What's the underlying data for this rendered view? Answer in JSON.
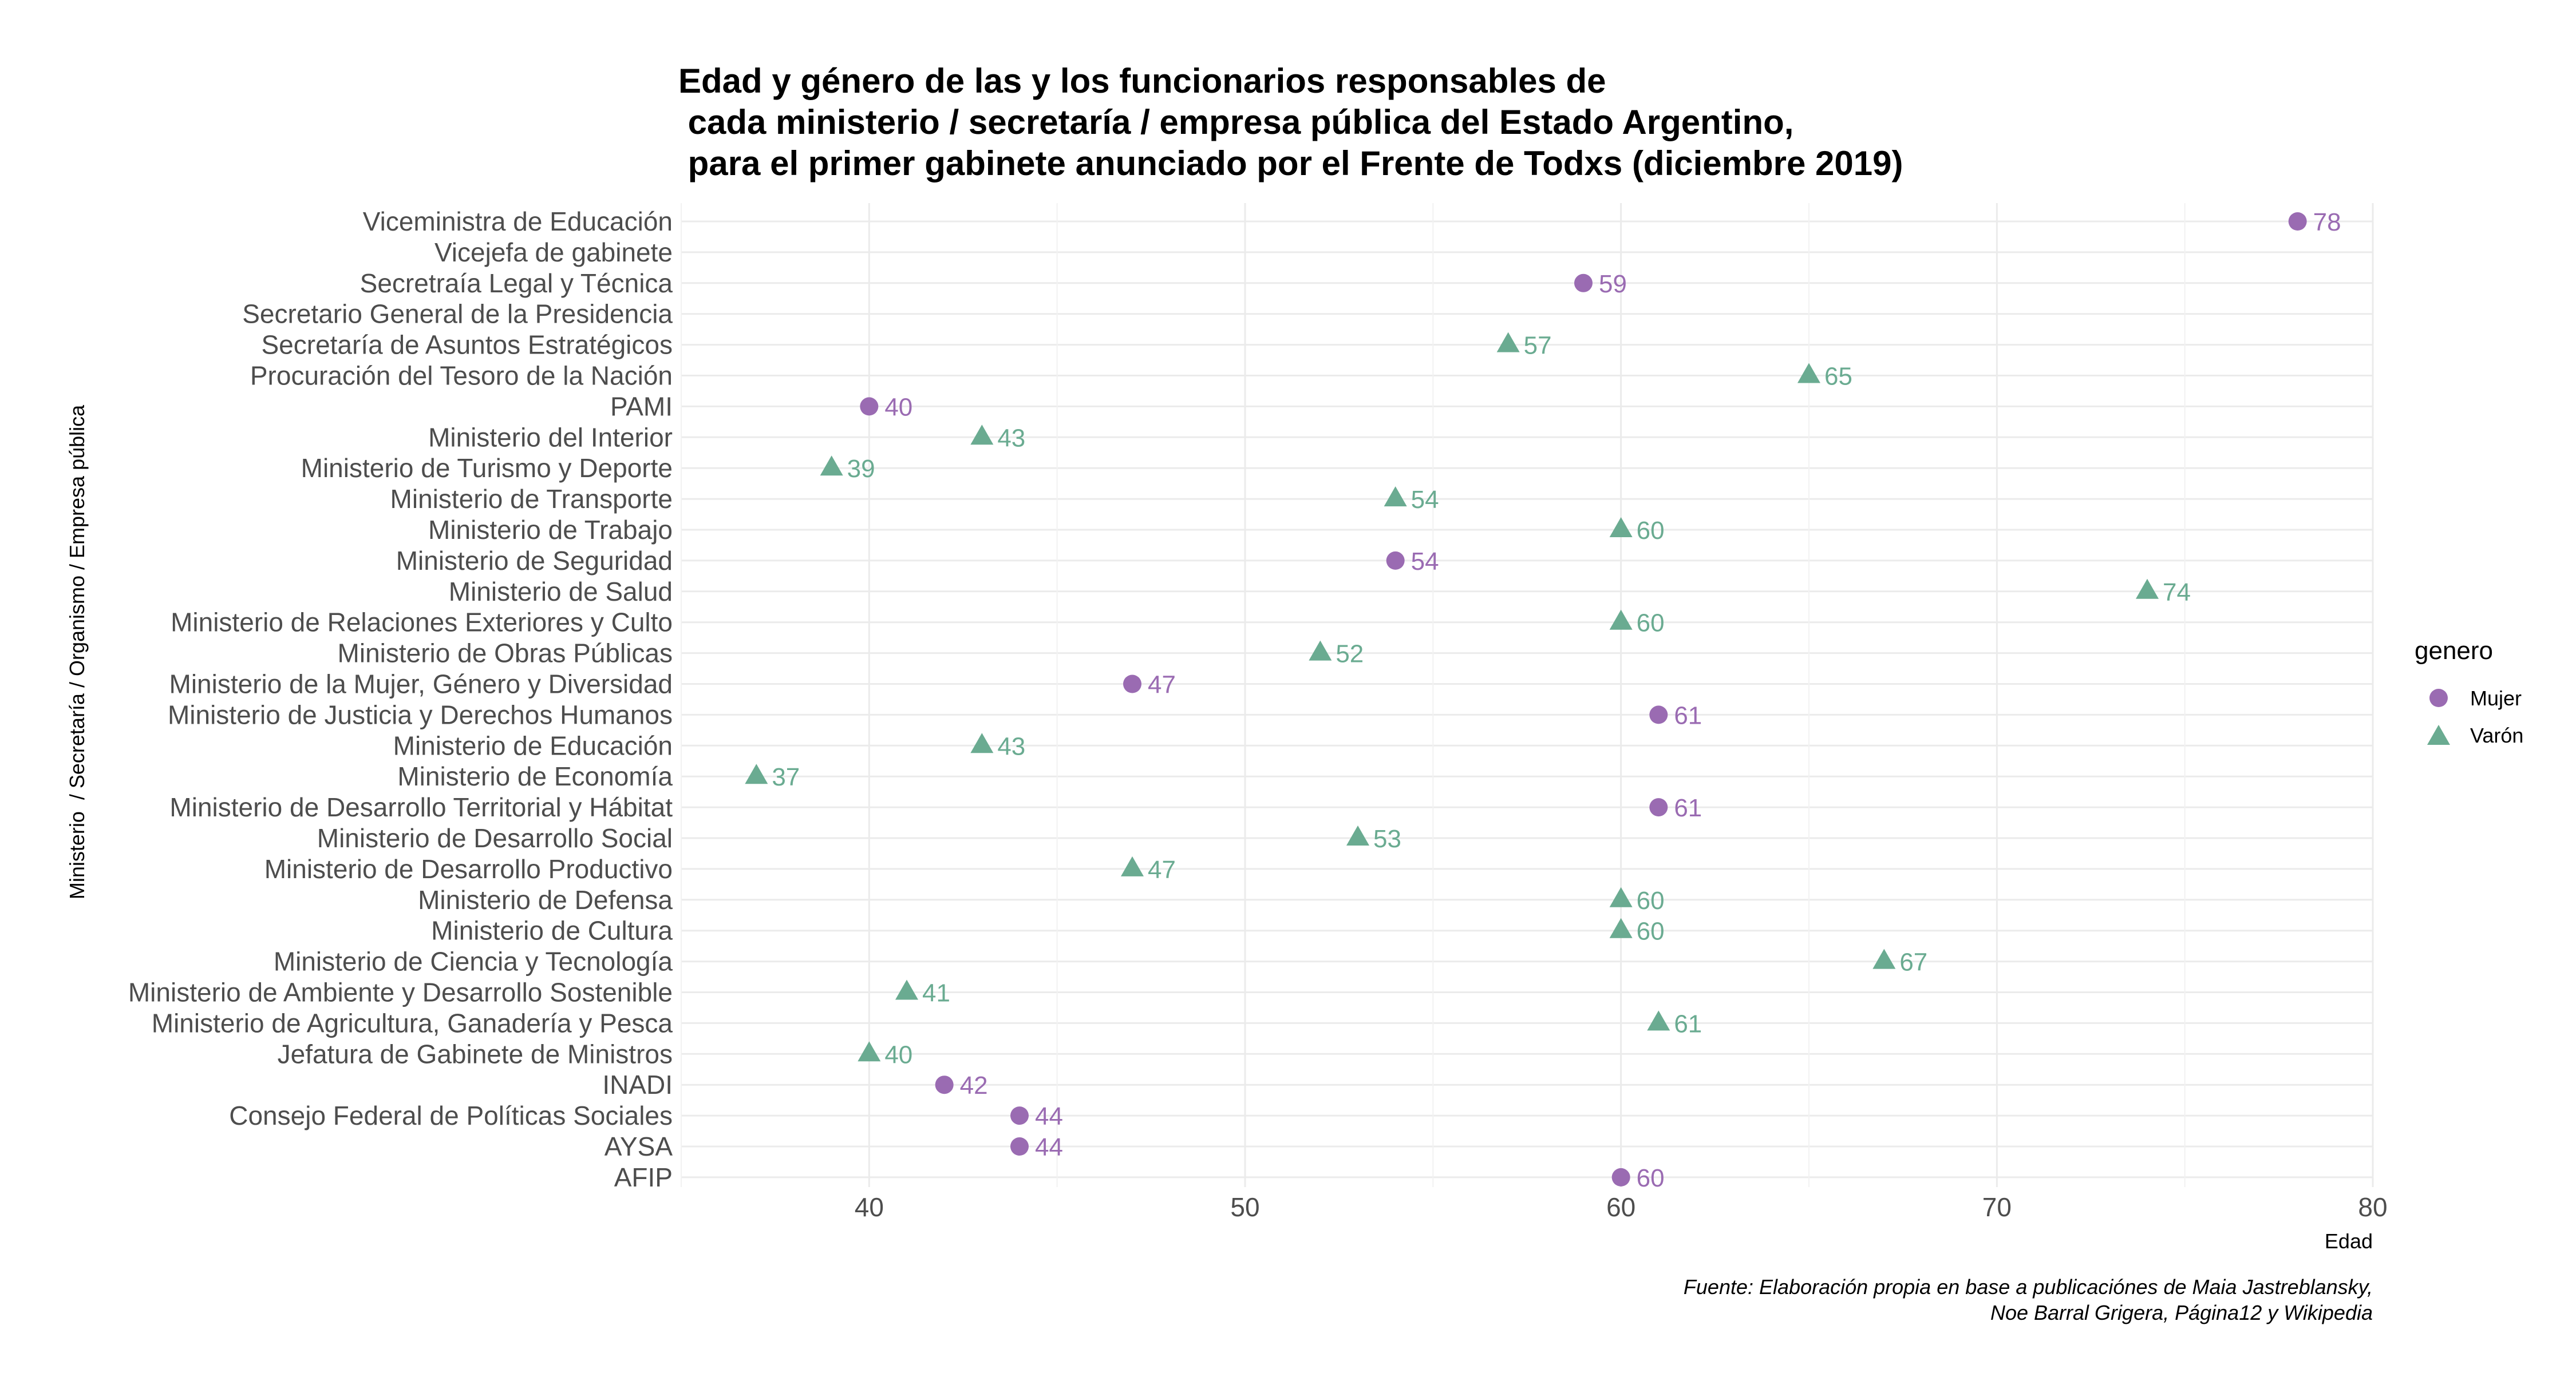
{
  "chart_data": {
    "type": "scatter",
    "title": [
      "Edad y género de las y los funcionarios responsables de",
      " cada ministerio / secretaría / empresa pública del Estado Argentino,",
      " para el primer gabinete anunciado por el Frente de Todxs (diciembre 2019)"
    ],
    "xlabel": "Edad",
    "ylabel": "Ministerio  / Secretaría / Organismo / Empresa pública",
    "xlim": [
      35,
      80
    ],
    "xticks": [
      40,
      50,
      60,
      70,
      80
    ],
    "grid": true,
    "legend": {
      "title": "genero",
      "position": "right",
      "entries": [
        {
          "label": "Mujer",
          "color": "#9a6bb2",
          "shape": "circle"
        },
        {
          "label": "Varón",
          "color": "#6aab91",
          "shape": "triangle"
        }
      ]
    },
    "categories": [
      "Viceministra de Educación",
      "Vicejefa de gabinete",
      "Secretraía Legal y Técnica",
      "Secretario General de la Presidencia",
      "Secretaría de Asuntos Estratégicos",
      "Procuración del Tesoro de la Nación",
      "PAMI",
      "Ministerio del Interior",
      "Ministerio de Turismo y Deporte",
      "Ministerio de Transporte",
      "Ministerio de Trabajo",
      "Ministerio de Seguridad",
      "Ministerio de Salud",
      "Ministerio de Relaciones Exteriores y Culto",
      "Ministerio de Obras Públicas",
      "Ministerio de la Mujer, Género y Diversidad",
      "Ministerio de Justicia y Derechos Humanos",
      "Ministerio de Educación",
      "Ministerio de Economía",
      "Ministerio de Desarrollo Territorial y Hábitat",
      "Ministerio de Desarrollo Social",
      "Ministerio de Desarrollo Productivo",
      "Ministerio de Defensa",
      "Ministerio de Cultura",
      "Ministerio de Ciencia y Tecnología",
      "Ministerio de Ambiente y Desarrollo Sostenible",
      "Ministerio de Agricultura, Ganadería y Pesca",
      "Jefatura de Gabinete de Ministros",
      "INADI",
      "Consejo Federal de Políticas Sociales",
      "AYSA",
      "AFIP"
    ],
    "points": [
      {
        "category": "Viceministra de Educación",
        "value": 78,
        "genero": "Mujer",
        "label": "78"
      },
      {
        "category": "Secretraía Legal y Técnica",
        "value": 59,
        "genero": "Mujer",
        "label": "59"
      },
      {
        "category": "Secretaría de Asuntos Estratégicos",
        "value": 57,
        "genero": "Varón",
        "label": "57"
      },
      {
        "category": "Procuración del Tesoro de la Nación",
        "value": 65,
        "genero": "Varón",
        "label": "65"
      },
      {
        "category": "PAMI",
        "value": 40,
        "genero": "Mujer",
        "label": "40"
      },
      {
        "category": "Ministerio del Interior",
        "value": 43,
        "genero": "Varón",
        "label": "43"
      },
      {
        "category": "Ministerio de Turismo y Deporte",
        "value": 39,
        "genero": "Varón",
        "label": "39"
      },
      {
        "category": "Ministerio de Transporte",
        "value": 54,
        "genero": "Varón",
        "label": "54"
      },
      {
        "category": "Ministerio de Trabajo",
        "value": 60,
        "genero": "Varón",
        "label": "60"
      },
      {
        "category": "Ministerio de Seguridad",
        "value": 54,
        "genero": "Mujer",
        "label": "54"
      },
      {
        "category": "Ministerio de Salud",
        "value": 74,
        "genero": "Varón",
        "label": "74"
      },
      {
        "category": "Ministerio de Relaciones Exteriores y Culto",
        "value": 60,
        "genero": "Varón",
        "label": "60"
      },
      {
        "category": "Ministerio de Obras Públicas",
        "value": 52,
        "genero": "Varón",
        "label": "52"
      },
      {
        "category": "Ministerio de la Mujer, Género y Diversidad",
        "value": 47,
        "genero": "Mujer",
        "label": "47"
      },
      {
        "category": "Ministerio de Justicia y Derechos Humanos",
        "value": 61,
        "genero": "Mujer",
        "label": "61"
      },
      {
        "category": "Ministerio de Educación",
        "value": 43,
        "genero": "Varón",
        "label": "43"
      },
      {
        "category": "Ministerio de Economía",
        "value": 37,
        "genero": "Varón",
        "label": "37"
      },
      {
        "category": "Ministerio de Desarrollo Territorial y Hábitat",
        "value": 61,
        "genero": "Mujer",
        "label": "61"
      },
      {
        "category": "Ministerio de Desarrollo Social",
        "value": 53,
        "genero": "Varón",
        "label": "53"
      },
      {
        "category": "Ministerio de Desarrollo Productivo",
        "value": 47,
        "genero": "Varón",
        "label": "47"
      },
      {
        "category": "Ministerio de Defensa",
        "value": 60,
        "genero": "Varón",
        "label": "60"
      },
      {
        "category": "Ministerio de Cultura",
        "value": 60,
        "genero": "Varón",
        "label": "60"
      },
      {
        "category": "Ministerio de Ciencia y Tecnología",
        "value": 67,
        "genero": "Varón",
        "label": "67"
      },
      {
        "category": "Ministerio de Ambiente y Desarrollo Sostenible",
        "value": 41,
        "genero": "Varón",
        "label": "41"
      },
      {
        "category": "Ministerio de Agricultura, Ganadería y Pesca",
        "value": 61,
        "genero": "Varón",
        "label": "61"
      },
      {
        "category": "Jefatura de Gabinete de Ministros",
        "value": 40,
        "genero": "Varón",
        "label": "40"
      },
      {
        "category": "INADI",
        "value": 42,
        "genero": "Mujer",
        "label": "42"
      },
      {
        "category": "Consejo Federal de Políticas Sociales",
        "value": 44,
        "genero": "Mujer",
        "label": "44"
      },
      {
        "category": "AYSA",
        "value": 44,
        "genero": "Mujer",
        "label": "44"
      },
      {
        "category": "AFIP",
        "value": 60,
        "genero": "Mujer",
        "label": "60"
      }
    ],
    "caption": [
      "Fuente: Elaboración propia en base a publicaciónes de Maia Jastreblansky,",
      "Noe Barral Grigera, Página12 y Wikipedia"
    ]
  }
}
